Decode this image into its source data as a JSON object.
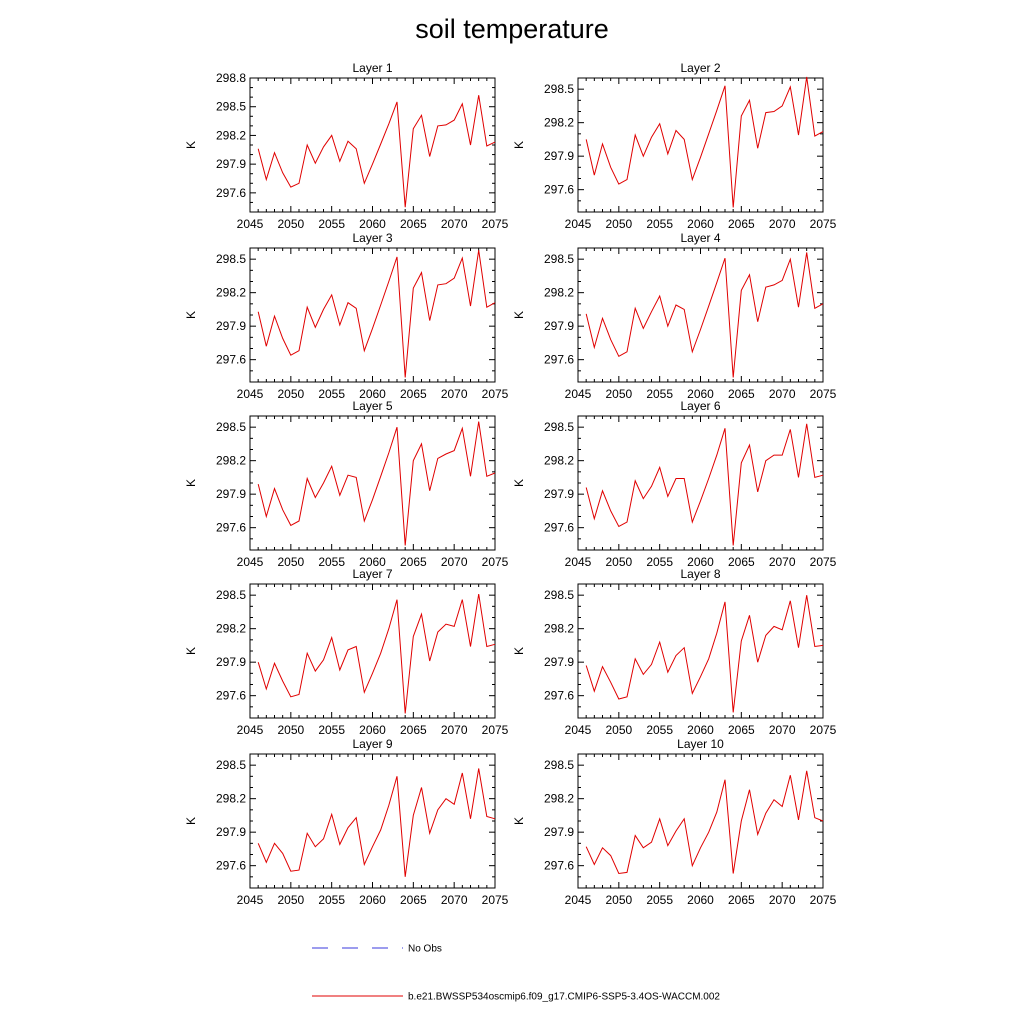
{
  "title": "soil temperature",
  "legend": {
    "obs_label": "No Obs",
    "obs_color": "#3a3adc",
    "model_label": "b.e21.BWSSP534oscmip6.f09_g17.CMIP6-SSP5-3.4OS-WACCM.002",
    "model_color": "#e00000"
  },
  "chart_data": [
    {
      "type": "line",
      "title": "Layer 1",
      "ylabel": "K",
      "xlim": [
        2045,
        2075
      ],
      "ylim": [
        297.4,
        298.8
      ],
      "xticks": [
        2045,
        2050,
        2055,
        2060,
        2065,
        2070,
        2075
      ],
      "yticks": [
        297.6,
        297.9,
        298.2,
        298.5,
        298.8
      ],
      "x": [
        2046,
        2047,
        2048,
        2049,
        2050,
        2051,
        2052,
        2053,
        2054,
        2055,
        2056,
        2057,
        2058,
        2059,
        2060,
        2061,
        2062,
        2063,
        2064,
        2065,
        2066,
        2067,
        2068,
        2069,
        2070,
        2071,
        2072,
        2073,
        2074,
        2075
      ],
      "series": [
        {
          "values": [
            298.06,
            297.74,
            298.02,
            297.81,
            297.66,
            297.7,
            298.1,
            297.91,
            298.08,
            298.2,
            297.93,
            298.14,
            298.06,
            297.7,
            297.9,
            298.11,
            298.32,
            298.55,
            297.45,
            298.27,
            298.41,
            297.98,
            298.3,
            298.31,
            298.36,
            298.53,
            298.1,
            298.62,
            298.09,
            298.13
          ]
        }
      ]
    },
    {
      "type": "line",
      "title": "Layer 2",
      "ylabel": "K",
      "xlim": [
        2045,
        2075
      ],
      "ylim": [
        297.4,
        298.6
      ],
      "xticks": [
        2045,
        2050,
        2055,
        2060,
        2065,
        2070,
        2075
      ],
      "yticks": [
        297.6,
        297.9,
        298.2,
        298.5
      ],
      "x": [
        2046,
        2047,
        2048,
        2049,
        2050,
        2051,
        2052,
        2053,
        2054,
        2055,
        2056,
        2057,
        2058,
        2059,
        2060,
        2061,
        2062,
        2063,
        2064,
        2065,
        2066,
        2067,
        2068,
        2069,
        2070,
        2071,
        2072,
        2073,
        2074,
        2075
      ],
      "series": [
        {
          "values": [
            298.05,
            297.73,
            298.01,
            297.8,
            297.65,
            297.69,
            298.09,
            297.9,
            298.07,
            298.19,
            297.92,
            298.13,
            298.05,
            297.69,
            297.89,
            298.1,
            298.31,
            298.53,
            297.44,
            298.26,
            298.4,
            297.97,
            298.29,
            298.3,
            298.35,
            298.52,
            298.09,
            298.61,
            298.08,
            298.12
          ]
        }
      ]
    },
    {
      "type": "line",
      "title": "Layer 3",
      "ylabel": "K",
      "xlim": [
        2045,
        2075
      ],
      "ylim": [
        297.4,
        298.6
      ],
      "xticks": [
        2045,
        2050,
        2055,
        2060,
        2065,
        2070,
        2075
      ],
      "yticks": [
        297.6,
        297.9,
        298.2,
        298.5
      ],
      "x": [
        2046,
        2047,
        2048,
        2049,
        2050,
        2051,
        2052,
        2053,
        2054,
        2055,
        2056,
        2057,
        2058,
        2059,
        2060,
        2061,
        2062,
        2063,
        2064,
        2065,
        2066,
        2067,
        2068,
        2069,
        2070,
        2071,
        2072,
        2073,
        2074,
        2075
      ],
      "series": [
        {
          "values": [
            298.03,
            297.72,
            297.99,
            297.79,
            297.64,
            297.68,
            298.07,
            297.89,
            298.05,
            298.18,
            297.91,
            298.11,
            298.06,
            297.68,
            297.88,
            298.09,
            298.3,
            298.52,
            297.44,
            298.24,
            298.38,
            297.95,
            298.27,
            298.28,
            298.33,
            298.51,
            298.08,
            298.58,
            298.07,
            298.11
          ]
        }
      ]
    },
    {
      "type": "line",
      "title": "Layer 4",
      "ylabel": "K",
      "xlim": [
        2045,
        2075
      ],
      "ylim": [
        297.4,
        298.6
      ],
      "xticks": [
        2045,
        2050,
        2055,
        2060,
        2065,
        2070,
        2075
      ],
      "yticks": [
        297.6,
        297.9,
        298.2,
        298.5
      ],
      "x": [
        2046,
        2047,
        2048,
        2049,
        2050,
        2051,
        2052,
        2053,
        2054,
        2055,
        2056,
        2057,
        2058,
        2059,
        2060,
        2061,
        2062,
        2063,
        2064,
        2065,
        2066,
        2067,
        2068,
        2069,
        2070,
        2071,
        2072,
        2073,
        2074,
        2075
      ],
      "series": [
        {
          "values": [
            298.01,
            297.71,
            297.97,
            297.78,
            297.63,
            297.67,
            298.06,
            297.88,
            298.03,
            298.17,
            297.9,
            298.09,
            298.05,
            297.67,
            297.87,
            298.08,
            298.29,
            298.51,
            297.44,
            298.22,
            298.36,
            297.94,
            298.25,
            298.27,
            298.31,
            298.5,
            298.07,
            298.56,
            298.06,
            298.1
          ]
        }
      ]
    },
    {
      "type": "line",
      "title": "Layer 5",
      "ylabel": "K",
      "xlim": [
        2045,
        2075
      ],
      "ylim": [
        297.4,
        298.6
      ],
      "xticks": [
        2045,
        2050,
        2055,
        2060,
        2065,
        2070,
        2075
      ],
      "yticks": [
        297.6,
        297.9,
        298.2,
        298.5
      ],
      "x": [
        2046,
        2047,
        2048,
        2049,
        2050,
        2051,
        2052,
        2053,
        2054,
        2055,
        2056,
        2057,
        2058,
        2059,
        2060,
        2061,
        2062,
        2063,
        2064,
        2065,
        2066,
        2067,
        2068,
        2069,
        2070,
        2071,
        2072,
        2073,
        2074,
        2075
      ],
      "series": [
        {
          "values": [
            297.99,
            297.7,
            297.95,
            297.76,
            297.62,
            297.66,
            298.04,
            297.87,
            298.0,
            298.15,
            297.89,
            298.07,
            298.05,
            297.66,
            297.85,
            298.06,
            298.27,
            298.5,
            297.44,
            298.2,
            298.35,
            297.93,
            298.22,
            298.26,
            298.29,
            298.49,
            298.06,
            298.55,
            298.06,
            298.09
          ]
        }
      ]
    },
    {
      "type": "line",
      "title": "Layer 6",
      "ylabel": "K",
      "xlim": [
        2045,
        2075
      ],
      "ylim": [
        297.4,
        298.6
      ],
      "xticks": [
        2045,
        2050,
        2055,
        2060,
        2065,
        2070,
        2075
      ],
      "yticks": [
        297.6,
        297.9,
        298.2,
        298.5
      ],
      "x": [
        2046,
        2047,
        2048,
        2049,
        2050,
        2051,
        2052,
        2053,
        2054,
        2055,
        2056,
        2057,
        2058,
        2059,
        2060,
        2061,
        2062,
        2063,
        2064,
        2065,
        2066,
        2067,
        2068,
        2069,
        2070,
        2071,
        2072,
        2073,
        2074,
        2075
      ],
      "series": [
        {
          "values": [
            297.96,
            297.68,
            297.93,
            297.75,
            297.61,
            297.65,
            298.02,
            297.86,
            297.97,
            298.14,
            297.88,
            298.04,
            298.04,
            297.65,
            297.84,
            298.04,
            298.25,
            298.49,
            297.44,
            298.18,
            298.34,
            297.92,
            298.2,
            298.25,
            298.25,
            298.48,
            298.05,
            298.53,
            298.05,
            298.07
          ]
        }
      ]
    },
    {
      "type": "line",
      "title": "Layer 7",
      "ylabel": "K",
      "xlim": [
        2045,
        2075
      ],
      "ylim": [
        297.4,
        298.6
      ],
      "xticks": [
        2045,
        2050,
        2055,
        2060,
        2065,
        2070,
        2075
      ],
      "yticks": [
        297.6,
        297.9,
        298.2,
        298.5
      ],
      "x": [
        2046,
        2047,
        2048,
        2049,
        2050,
        2051,
        2052,
        2053,
        2054,
        2055,
        2056,
        2057,
        2058,
        2059,
        2060,
        2061,
        2062,
        2063,
        2064,
        2065,
        2066,
        2067,
        2068,
        2069,
        2070,
        2071,
        2072,
        2073,
        2074,
        2075
      ],
      "series": [
        {
          "values": [
            297.9,
            297.66,
            297.89,
            297.73,
            297.59,
            297.61,
            297.98,
            297.82,
            297.92,
            298.12,
            297.83,
            298.01,
            298.04,
            297.63,
            297.8,
            297.98,
            298.2,
            298.46,
            297.44,
            298.13,
            298.33,
            297.91,
            298.17,
            298.24,
            298.22,
            298.46,
            298.04,
            298.51,
            298.04,
            298.06
          ]
        }
      ]
    },
    {
      "type": "line",
      "title": "Layer 8",
      "ylabel": "K",
      "xlim": [
        2045,
        2075
      ],
      "ylim": [
        297.4,
        298.6
      ],
      "xticks": [
        2045,
        2050,
        2055,
        2060,
        2065,
        2070,
        2075
      ],
      "yticks": [
        297.6,
        297.9,
        298.2,
        298.5
      ],
      "x": [
        2046,
        2047,
        2048,
        2049,
        2050,
        2051,
        2052,
        2053,
        2054,
        2055,
        2056,
        2057,
        2058,
        2059,
        2060,
        2061,
        2062,
        2063,
        2064,
        2065,
        2066,
        2067,
        2068,
        2069,
        2070,
        2071,
        2072,
        2073,
        2074,
        2075
      ],
      "series": [
        {
          "values": [
            297.87,
            297.64,
            297.86,
            297.72,
            297.57,
            297.59,
            297.93,
            297.79,
            297.88,
            298.08,
            297.81,
            297.96,
            298.03,
            297.62,
            297.77,
            297.93,
            298.16,
            298.44,
            297.45,
            298.09,
            298.32,
            297.9,
            298.14,
            298.22,
            298.19,
            298.45,
            298.03,
            298.5,
            298.04,
            298.05
          ]
        }
      ]
    },
    {
      "type": "line",
      "title": "Layer 9",
      "ylabel": "K",
      "xlim": [
        2045,
        2075
      ],
      "ylim": [
        297.4,
        298.6
      ],
      "xticks": [
        2045,
        2050,
        2055,
        2060,
        2065,
        2070,
        2075
      ],
      "yticks": [
        297.6,
        297.9,
        298.2,
        298.5
      ],
      "x": [
        2046,
        2047,
        2048,
        2049,
        2050,
        2051,
        2052,
        2053,
        2054,
        2055,
        2056,
        2057,
        2058,
        2059,
        2060,
        2061,
        2062,
        2063,
        2064,
        2065,
        2066,
        2067,
        2068,
        2069,
        2070,
        2071,
        2072,
        2073,
        2074,
        2075
      ],
      "series": [
        {
          "values": [
            297.8,
            297.63,
            297.8,
            297.71,
            297.55,
            297.56,
            297.89,
            297.77,
            297.84,
            298.06,
            297.79,
            297.94,
            298.03,
            297.61,
            297.77,
            297.92,
            298.14,
            298.4,
            297.5,
            298.05,
            298.3,
            297.89,
            298.1,
            298.2,
            298.15,
            298.43,
            298.02,
            298.47,
            298.04,
            298.02
          ]
        }
      ]
    },
    {
      "type": "line",
      "title": "Layer 10",
      "ylabel": "K",
      "xlim": [
        2045,
        2075
      ],
      "ylim": [
        297.4,
        298.6
      ],
      "xticks": [
        2045,
        2050,
        2055,
        2060,
        2065,
        2070,
        2075
      ],
      "yticks": [
        297.6,
        297.9,
        298.2,
        298.5
      ],
      "x": [
        2046,
        2047,
        2048,
        2049,
        2050,
        2051,
        2052,
        2053,
        2054,
        2055,
        2056,
        2057,
        2058,
        2059,
        2060,
        2061,
        2062,
        2063,
        2064,
        2065,
        2066,
        2067,
        2068,
        2069,
        2070,
        2071,
        2072,
        2073,
        2074,
        2075
      ],
      "series": [
        {
          "values": [
            297.77,
            297.61,
            297.76,
            297.69,
            297.53,
            297.54,
            297.87,
            297.76,
            297.81,
            298.02,
            297.78,
            297.91,
            298.02,
            297.6,
            297.76,
            297.9,
            298.08,
            298.37,
            297.53,
            298.0,
            298.28,
            297.88,
            298.07,
            298.19,
            298.13,
            298.41,
            298.01,
            298.45,
            298.03,
            298.0
          ]
        }
      ]
    }
  ]
}
